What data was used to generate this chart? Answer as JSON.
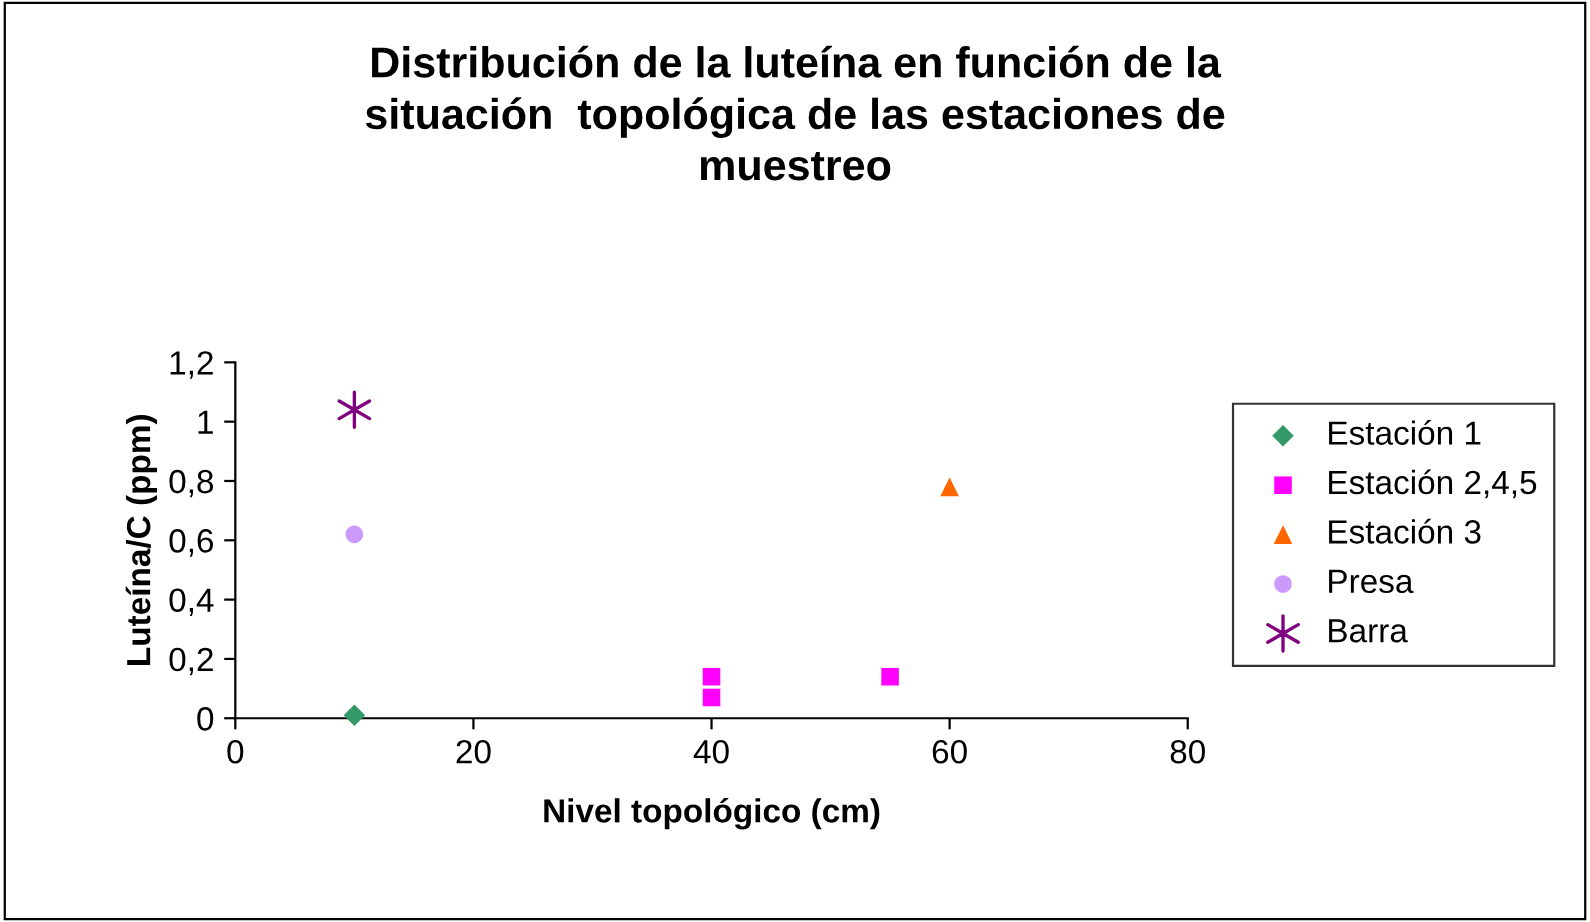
{
  "chart_data": {
    "type": "scatter",
    "title": "Distribución de la luteína en función de la\nsituación  topológica de las estaciones de\nmuestreo",
    "xlabel": "Nivel topológico (cm)",
    "ylabel": "Luteína/C (ppm)",
    "series": [
      {
        "name": "Estación 1",
        "color": "#339966",
        "marker": "diamond",
        "x": [
          10
        ],
        "values": [
          0.01
        ]
      },
      {
        "name": "Estación 2,4,5",
        "color": "#ff00ff",
        "marker": "square",
        "x": [
          40,
          40,
          55
        ],
        "values": [
          0.14,
          0.07,
          0.14
        ]
      },
      {
        "name": "Estación 3",
        "color": "#ff6600",
        "marker": "triangle",
        "x": [
          60
        ],
        "values": [
          0.78
        ]
      },
      {
        "name": "Presa",
        "color": "#cc99ff",
        "marker": "circle",
        "x": [
          10
        ],
        "values": [
          0.62
        ]
      },
      {
        "name": "Barra",
        "color": "#800080",
        "marker": "cross",
        "x": [
          10
        ],
        "values": [
          1.04
        ]
      }
    ],
    "xlim": [
      0,
      80
    ],
    "xticks": [
      0,
      20,
      40,
      60,
      80
    ],
    "ylim": [
      0,
      1.2
    ],
    "yticks": [
      0,
      {
        "value": 0.2,
        "label": "0,2"
      },
      {
        "value": 0.4,
        "label": "0,4"
      },
      {
        "value": 0.6,
        "label": "0,6"
      },
      {
        "value": 0.8,
        "label": "0,8"
      },
      1,
      {
        "value": 1.2,
        "label": "1,2"
      }
    ],
    "grid": false,
    "legend": "right"
  }
}
